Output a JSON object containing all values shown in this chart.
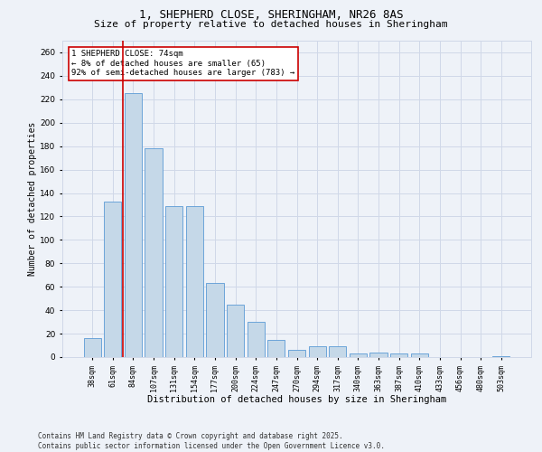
{
  "title_line1": "1, SHEPHERD CLOSE, SHERINGHAM, NR26 8AS",
  "title_line2": "Size of property relative to detached houses in Sheringham",
  "xlabel": "Distribution of detached houses by size in Sheringham",
  "ylabel": "Number of detached properties",
  "categories": [
    "38sqm",
    "61sqm",
    "84sqm",
    "107sqm",
    "131sqm",
    "154sqm",
    "177sqm",
    "200sqm",
    "224sqm",
    "247sqm",
    "270sqm",
    "294sqm",
    "317sqm",
    "340sqm",
    "363sqm",
    "387sqm",
    "410sqm",
    "433sqm",
    "456sqm",
    "480sqm",
    "503sqm"
  ],
  "values": [
    16,
    133,
    225,
    178,
    129,
    129,
    63,
    45,
    30,
    15,
    6,
    9,
    9,
    3,
    4,
    3,
    3,
    0,
    0,
    0,
    1
  ],
  "bar_color": "#c5d8e8",
  "bar_edge_color": "#5b9bd5",
  "vline_x": 1.5,
  "vline_color": "#cc0000",
  "annotation_text": "1 SHEPHERD CLOSE: 74sqm\n← 8% of detached houses are smaller (65)\n92% of semi-detached houses are larger (783) →",
  "annotation_box_color": "#ffffff",
  "annotation_box_edge": "#cc0000",
  "ylim": [
    0,
    270
  ],
  "yticks": [
    0,
    20,
    40,
    60,
    80,
    100,
    120,
    140,
    160,
    180,
    200,
    220,
    240,
    260
  ],
  "grid_color": "#d0d8e8",
  "background_color": "#eef2f8",
  "footer_text": "Contains HM Land Registry data © Crown copyright and database right 2025.\nContains public sector information licensed under the Open Government Licence v3.0.",
  "title_fontsize": 9,
  "subtitle_fontsize": 8,
  "axis_label_fontsize": 7.5,
  "tick_fontsize": 6,
  "annotation_fontsize": 6.5,
  "footer_fontsize": 5.5,
  "ylabel_fontsize": 7
}
